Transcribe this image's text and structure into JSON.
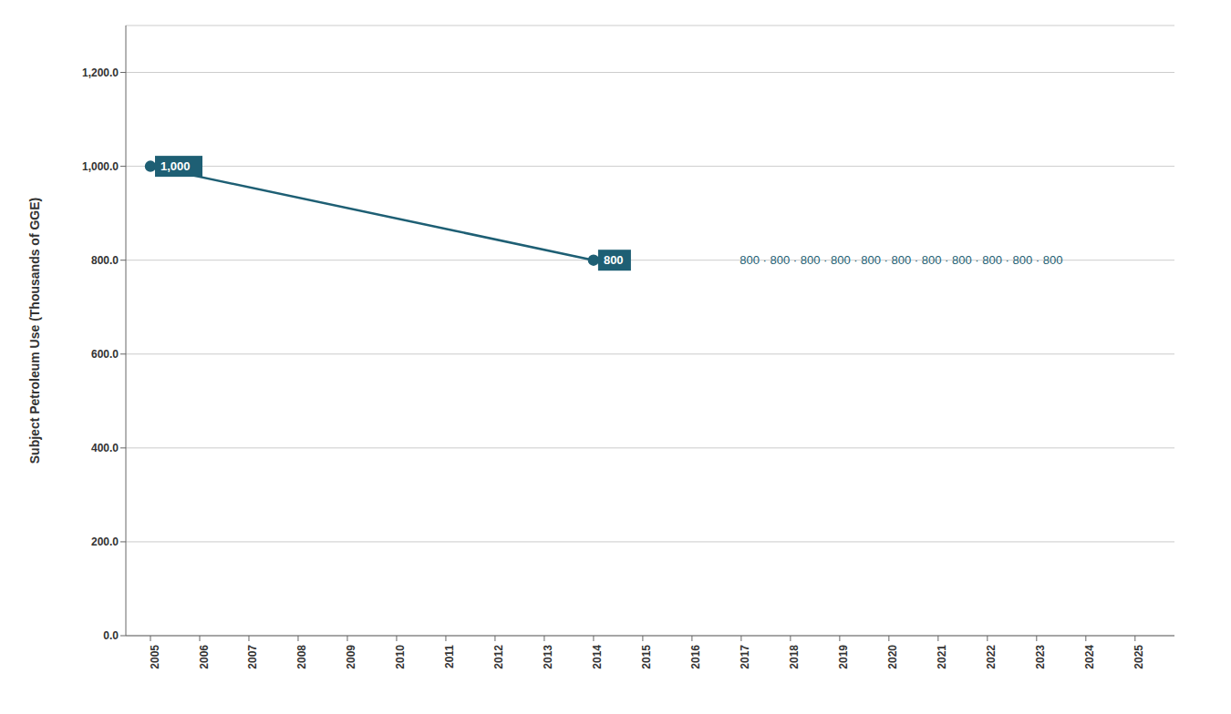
{
  "chart_data": {
    "type": "line",
    "title": "",
    "ylabel": "Subject Petroleum Use (Thousands of GGE)",
    "x": [
      2005,
      2014
    ],
    "values": [
      1000,
      800
    ],
    "color": "#1e5f74",
    "marker": "circle",
    "grid": true,
    "xlim": [
      2004.5,
      2025.8
    ],
    "ylim": [
      0,
      1300
    ],
    "xticks": [
      2005,
      2006,
      2007,
      2008,
      2009,
      2010,
      2011,
      2012,
      2013,
      2014,
      2015,
      2016,
      2017,
      2018,
      2019,
      2020,
      2021,
      2022,
      2023,
      2024,
      2025
    ],
    "yticks": [
      {
        "value": 0,
        "label": "0.0"
      },
      {
        "value": 200,
        "label": "200.0"
      },
      {
        "value": 400,
        "label": "400.0"
      },
      {
        "value": 600,
        "label": "600.0"
      },
      {
        "value": 800,
        "label": "800.0"
      },
      {
        "value": 1000,
        "label": "1,000.0"
      },
      {
        "value": 1200,
        "label": "1,200.0"
      }
    ],
    "annotations": [
      {
        "text": "1,000",
        "x": 2005,
        "y": 1000,
        "color": "#ffffff",
        "background_color": "#1e5f74"
      },
      {
        "text": "800",
        "x": 2014,
        "y": 800,
        "color": "#ffffff",
        "background_color": "#1e5f74"
      },
      {
        "text": "800 · 800 · 800 · 800 · 800 · 800 · 800 · 800 · 800 · 800 · 800",
        "x": 2020.25,
        "y": 800,
        "color": "#1e5f74"
      }
    ]
  }
}
